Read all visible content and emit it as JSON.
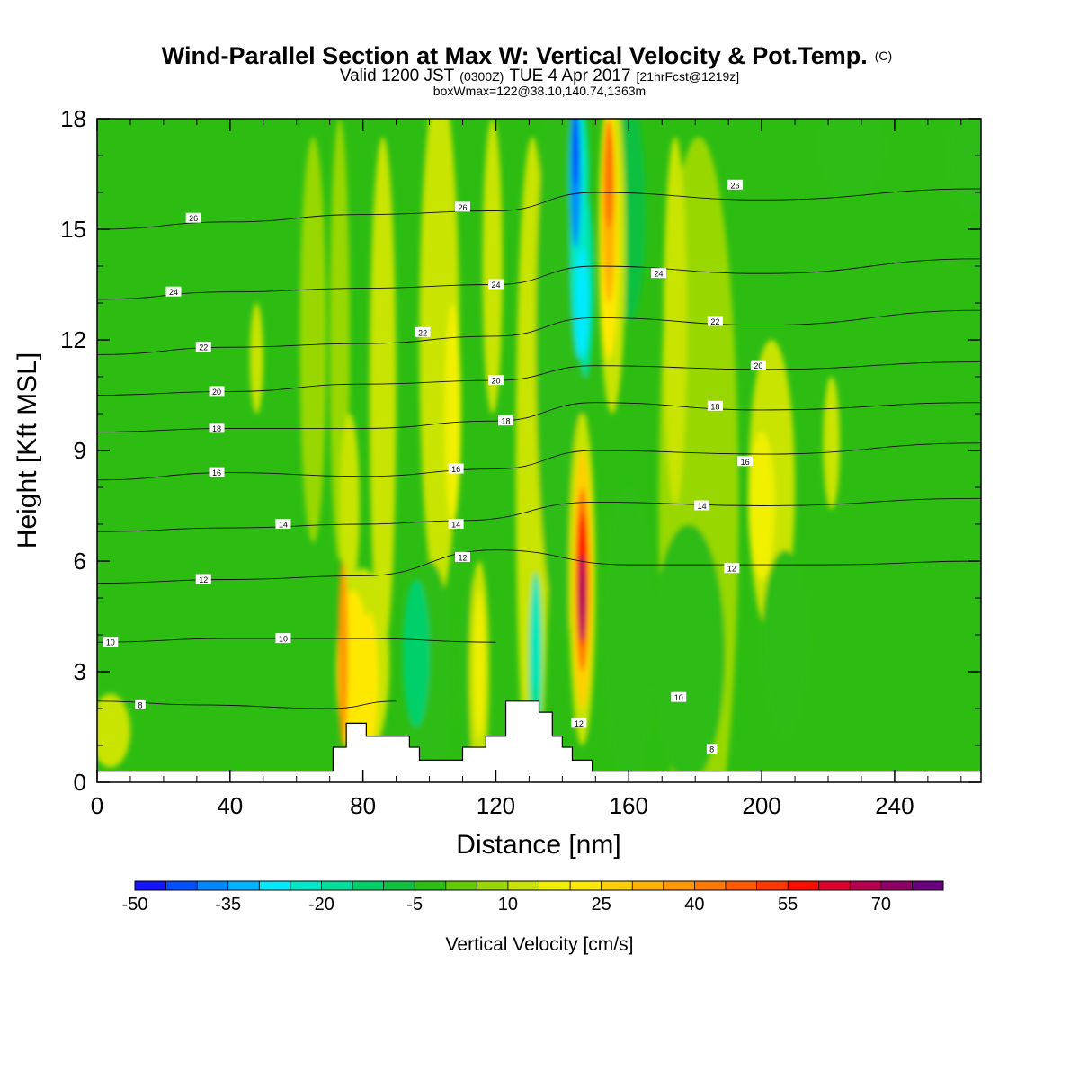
{
  "chart_data": {
    "type": "heatmap",
    "title": "Wind-Parallel Section at Max W: Vertical Velocity & Pot.Temp.",
    "title_mark": "(C)",
    "subtitle": {
      "valid_label": "Valid 1200 JST",
      "utc": "(0300Z)",
      "date": "TUE 4 Apr 2017",
      "forecast": "[21hrFcst@1219z]"
    },
    "subtitle2": "boxWmax=122@38.10,140.74,1363m",
    "xlabel": "Distance [nm]",
    "ylabel": "Height [Kft MSL]",
    "xlim": [
      0,
      266
    ],
    "ylim": [
      0,
      18
    ],
    "xticks": [
      0,
      40,
      80,
      120,
      160,
      200,
      240
    ],
    "yticks": [
      0,
      3,
      6,
      9,
      12,
      15,
      18
    ],
    "background_color": "#2dbd12",
    "terrain": [
      [
        0,
        0.3
      ],
      [
        71,
        0.3
      ],
      [
        71,
        0.95
      ],
      [
        75,
        0.95
      ],
      [
        75,
        1.6
      ],
      [
        81,
        1.6
      ],
      [
        81,
        1.25
      ],
      [
        94,
        1.25
      ],
      [
        94,
        0.95
      ],
      [
        97,
        0.95
      ],
      [
        97,
        0.6
      ],
      [
        110,
        0.6
      ],
      [
        110,
        0.95
      ],
      [
        117,
        0.95
      ],
      [
        117,
        1.25
      ],
      [
        123,
        1.25
      ],
      [
        123,
        2.2
      ],
      [
        133,
        2.2
      ],
      [
        133,
        1.9
      ],
      [
        137,
        1.9
      ],
      [
        137,
        1.25
      ],
      [
        140,
        1.25
      ],
      [
        140,
        0.95
      ],
      [
        143,
        0.95
      ],
      [
        143,
        0.6
      ],
      [
        149,
        0.6
      ],
      [
        149,
        0.3
      ],
      [
        266,
        0.3
      ]
    ],
    "features": [
      {
        "value": 10,
        "cx": 4,
        "cy": 1.4,
        "rx": 6,
        "ry": 1.0
      },
      {
        "value": 5,
        "cx": 73,
        "cy": 12,
        "rx": 3,
        "ry": 6
      },
      {
        "value": 10,
        "cx": 48,
        "cy": 11.5,
        "rx": 2,
        "ry": 1.5
      },
      {
        "value": 5,
        "cx": 65,
        "cy": 12.0,
        "rx": 4,
        "ry": 5.5
      },
      {
        "value": 10,
        "cx": 86,
        "cy": 10.5,
        "rx": 4,
        "ry": 7
      },
      {
        "value": 10,
        "cx": 76,
        "cy": 7.5,
        "rx": 3,
        "ry": 2.5
      },
      {
        "value": 10,
        "cx": 103,
        "cy": 12,
        "rx": 6,
        "ry": 7
      },
      {
        "value": 15,
        "cx": 107,
        "cy": 10,
        "rx": 2.5,
        "ry": 3
      },
      {
        "value": 10,
        "cx": 119,
        "cy": 14,
        "rx": 3,
        "ry": 4
      },
      {
        "value": 10,
        "cx": 131,
        "cy": 8.5,
        "rx": 5,
        "ry": 9
      },
      {
        "value": 5,
        "cx": 181,
        "cy": 7.5,
        "rx": 12,
        "ry": 10
      },
      {
        "value": 10,
        "cx": 174,
        "cy": 12.5,
        "rx": 3.5,
        "ry": 5
      },
      {
        "value": 10,
        "cx": 203,
        "cy": 8.0,
        "rx": 7,
        "ry": 4
      },
      {
        "value": 10,
        "cx": 221,
        "cy": 9.2,
        "rx": 2.5,
        "ry": 1.8
      },
      {
        "value": 15,
        "cx": 200,
        "cy": 7.5,
        "rx": 4,
        "ry": 2
      },
      {
        "value": -5,
        "cx": 227,
        "cy": 17.2,
        "rx": 10,
        "ry": 1.3
      },
      {
        "value": -5,
        "cx": 264,
        "cy": 17,
        "rx": 8,
        "ry": 1.5
      },
      {
        "value": -5,
        "cx": 100,
        "cy": 3.0,
        "rx": 7,
        "ry": 3
      },
      {
        "value": -15,
        "cx": 96,
        "cy": 3.5,
        "rx": 4,
        "ry": 2
      },
      {
        "value": -5,
        "cx": 178,
        "cy": 3.5,
        "rx": 11,
        "ry": 3.5
      },
      {
        "value": -5,
        "cx": 207,
        "cy": 3.8,
        "rx": 7,
        "ry": 2.5
      },
      {
        "value": -5,
        "cx": 160,
        "cy": 4.0,
        "rx": 8,
        "ry": 4
      },
      {
        "value": -5,
        "cx": 113,
        "cy": 3.0,
        "rx": 4,
        "ry": 2.5
      },
      {
        "value": 10,
        "cx": 80,
        "cy": 3.2,
        "rx": 8,
        "ry": 2.6
      },
      {
        "value": 20,
        "cx": 77,
        "cy": 3.0,
        "rx": 5,
        "ry": 2.2
      },
      {
        "value": 35,
        "cx": 74,
        "cy": 3.5,
        "rx": 1.5,
        "ry": 2.5
      },
      {
        "value": 20,
        "cx": 82,
        "cy": 2.8,
        "rx": 2.5,
        "ry": 1.8
      },
      {
        "value": 10,
        "cx": 115,
        "cy": 3.0,
        "rx": 3,
        "ry": 3
      },
      {
        "value": 15,
        "cx": 115,
        "cy": 3.2,
        "rx": 1.5,
        "ry": 2.0
      },
      {
        "value": -20,
        "cx": 132,
        "cy": 3.2,
        "rx": 2,
        "ry": 2.5
      },
      {
        "value": -25,
        "cx": 132,
        "cy": 4.0,
        "rx": 1,
        "ry": 1.5
      },
      {
        "value": -5,
        "cx": 140,
        "cy": 12.0,
        "rx": 8,
        "ry": 8
      },
      {
        "value": -20,
        "cx": 145,
        "cy": 16.5,
        "rx": 3,
        "ry": 2.0
      },
      {
        "value": -20,
        "cx": 147,
        "cy": 13.5,
        "rx": 2.5,
        "ry": 2.5
      },
      {
        "value": -10,
        "cx": 160,
        "cy": 15.5,
        "rx": 5,
        "ry": 3
      },
      {
        "value": -25,
        "cx": 145,
        "cy": 15.0,
        "rx": 2.5,
        "ry": 3.5
      },
      {
        "value": -30,
        "cx": 146,
        "cy": 13.0,
        "rx": 2,
        "ry": 1.5
      },
      {
        "value": -40,
        "cx": 144,
        "cy": 16.5,
        "rx": 1.5,
        "ry": 2.0
      },
      {
        "value": -45,
        "cx": 144,
        "cy": 17.2,
        "rx": 1.0,
        "ry": 1.0
      },
      {
        "value": 10,
        "cx": 155,
        "cy": 14.5,
        "rx": 4,
        "ry": 4.5
      },
      {
        "value": 20,
        "cx": 154,
        "cy": 15.0,
        "rx": 3,
        "ry": 3.5
      },
      {
        "value": 30,
        "cx": 154,
        "cy": 15.5,
        "rx": 2,
        "ry": 2.5
      },
      {
        "value": 40,
        "cx": 154,
        "cy": 16.5,
        "rx": 1.5,
        "ry": 1.5
      },
      {
        "value": 10,
        "cx": 146,
        "cy": 5.5,
        "rx": 4,
        "ry": 4.5
      },
      {
        "value": 25,
        "cx": 146,
        "cy": 5.5,
        "rx": 3,
        "ry": 3.5
      },
      {
        "value": 40,
        "cx": 146,
        "cy": 5.5,
        "rx": 2,
        "ry": 2.5
      },
      {
        "value": 55,
        "cx": 146,
        "cy": 5.5,
        "rx": 1.5,
        "ry": 1.8
      },
      {
        "value": 70,
        "cx": 146,
        "cy": 5.0,
        "rx": 0.8,
        "ry": 1.2
      }
    ],
    "contours": [
      {
        "label": "8",
        "points": [
          [
            0,
            2.2
          ],
          [
            30,
            2.1
          ],
          [
            70,
            2.0
          ],
          [
            90,
            2.2
          ]
        ]
      },
      {
        "label": "10",
        "points": [
          [
            0,
            3.8
          ],
          [
            40,
            3.9
          ],
          [
            80,
            3.9
          ],
          [
            120,
            3.8
          ]
        ]
      },
      {
        "label": "12",
        "points": [
          [
            0,
            5.4
          ],
          [
            40,
            5.5
          ],
          [
            80,
            5.6
          ],
          [
            120,
            6.3
          ],
          [
            160,
            5.9
          ],
          [
            220,
            5.9
          ],
          [
            266,
            6.0
          ]
        ]
      },
      {
        "label": "14",
        "points": [
          [
            0,
            6.8
          ],
          [
            40,
            6.9
          ],
          [
            80,
            7.0
          ],
          [
            110,
            7.1
          ],
          [
            150,
            7.6
          ],
          [
            200,
            7.5
          ],
          [
            266,
            7.7
          ]
        ]
      },
      {
        "label": "16",
        "points": [
          [
            0,
            8.2
          ],
          [
            40,
            8.4
          ],
          [
            80,
            8.3
          ],
          [
            120,
            8.5
          ],
          [
            150,
            9.0
          ],
          [
            200,
            8.9
          ],
          [
            266,
            9.2
          ]
        ]
      },
      {
        "label": "18",
        "points": [
          [
            0,
            9.5
          ],
          [
            40,
            9.6
          ],
          [
            80,
            9.6
          ],
          [
            120,
            9.8
          ],
          [
            150,
            10.3
          ],
          [
            200,
            10.1
          ],
          [
            266,
            10.3
          ]
        ]
      },
      {
        "label": "20",
        "points": [
          [
            0,
            10.5
          ],
          [
            40,
            10.6
          ],
          [
            80,
            10.8
          ],
          [
            120,
            10.9
          ],
          [
            150,
            11.3
          ],
          [
            200,
            11.2
          ],
          [
            266,
            11.4
          ]
        ]
      },
      {
        "label": "22",
        "points": [
          [
            0,
            11.6
          ],
          [
            40,
            11.8
          ],
          [
            80,
            11.9
          ],
          [
            120,
            12.1
          ],
          [
            150,
            12.6
          ],
          [
            200,
            12.4
          ],
          [
            266,
            12.8
          ]
        ]
      },
      {
        "label": "24",
        "points": [
          [
            0,
            13.1
          ],
          [
            40,
            13.3
          ],
          [
            80,
            13.4
          ],
          [
            120,
            13.5
          ],
          [
            150,
            14.0
          ],
          [
            200,
            13.8
          ],
          [
            266,
            14.2
          ]
        ]
      },
      {
        "label": "26",
        "points": [
          [
            0,
            15.0
          ],
          [
            40,
            15.2
          ],
          [
            80,
            15.4
          ],
          [
            120,
            15.5
          ],
          [
            150,
            16.0
          ],
          [
            200,
            15.8
          ],
          [
            266,
            16.1
          ]
        ]
      }
    ],
    "contour_labels": [
      {
        "text": "8",
        "x": 13,
        "y": 2.1
      },
      {
        "text": "10",
        "x": 4,
        "y": 3.8
      },
      {
        "text": "10",
        "x": 56,
        "y": 3.9
      },
      {
        "text": "10",
        "x": 175,
        "y": 2.3
      },
      {
        "text": "8",
        "x": 185,
        "y": 0.9
      },
      {
        "text": "12",
        "x": 32,
        "y": 5.5
      },
      {
        "text": "12",
        "x": 110,
        "y": 6.1
      },
      {
        "text": "12",
        "x": 191,
        "y": 5.8
      },
      {
        "text": "12",
        "x": 145,
        "y": 1.6
      },
      {
        "text": "14",
        "x": 56,
        "y": 7.0
      },
      {
        "text": "14",
        "x": 108,
        "y": 7.0
      },
      {
        "text": "14",
        "x": 182,
        "y": 7.5
      },
      {
        "text": "16",
        "x": 36,
        "y": 8.4
      },
      {
        "text": "16",
        "x": 108,
        "y": 8.5
      },
      {
        "text": "16",
        "x": 195,
        "y": 8.7
      },
      {
        "text": "18",
        "x": 36,
        "y": 9.6
      },
      {
        "text": "18",
        "x": 123,
        "y": 9.8
      },
      {
        "text": "18",
        "x": 186,
        "y": 10.2
      },
      {
        "text": "20",
        "x": 36,
        "y": 10.6
      },
      {
        "text": "20",
        "x": 120,
        "y": 10.9
      },
      {
        "text": "20",
        "x": 199,
        "y": 11.3
      },
      {
        "text": "22",
        "x": 32,
        "y": 11.8
      },
      {
        "text": "22",
        "x": 98,
        "y": 12.2
      },
      {
        "text": "22",
        "x": 186,
        "y": 12.5
      },
      {
        "text": "24",
        "x": 23,
        "y": 13.3
      },
      {
        "text": "24",
        "x": 120,
        "y": 13.5
      },
      {
        "text": "24",
        "x": 169,
        "y": 13.8
      },
      {
        "text": "26",
        "x": 29,
        "y": 15.3
      },
      {
        "text": "26",
        "x": 110,
        "y": 15.6
      },
      {
        "text": "26",
        "x": 192,
        "y": 16.2
      }
    ],
    "colorbar": {
      "title": "Vertical Velocity [cm/s]",
      "levels": [
        -50,
        -45,
        -40,
        -35,
        -30,
        -25,
        -20,
        -15,
        -10,
        -5,
        0,
        5,
        10,
        15,
        20,
        25,
        30,
        35,
        40,
        45,
        50,
        55,
        60,
        65,
        70,
        75,
        80
      ],
      "colors": [
        "#1414ff",
        "#0050ff",
        "#0088ff",
        "#00b4ff",
        "#00eaff",
        "#00e8c8",
        "#00e09c",
        "#00d06a",
        "#10c040",
        "#2dbd12",
        "#62c800",
        "#98d800",
        "#c8e400",
        "#f0f000",
        "#ffe800",
        "#ffd000",
        "#ffb400",
        "#ff9800",
        "#ff7800",
        "#ff5a00",
        "#ff3800",
        "#ff0e00",
        "#e00030",
        "#b80050",
        "#900068",
        "#6a0080"
      ],
      "tick_labels": [
        "-50",
        "-35",
        "-20",
        "-5",
        "10",
        "25",
        "40",
        "55",
        "70"
      ]
    }
  }
}
